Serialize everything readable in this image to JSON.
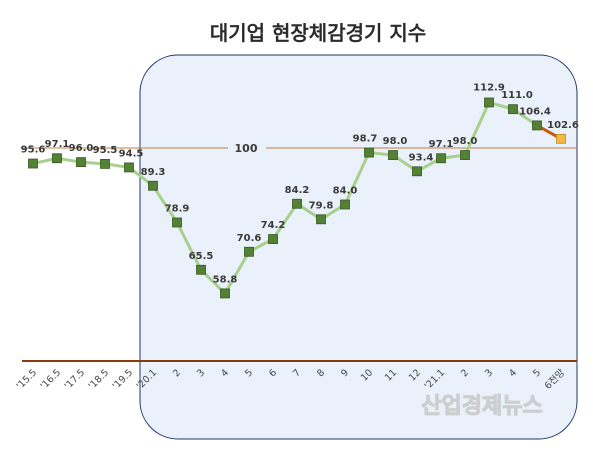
{
  "chart_data": {
    "type": "line",
    "title": "대기업 현장체감경기 지수",
    "reference_line": {
      "value": 100,
      "label": "100"
    },
    "categories": [
      "'15.5",
      "'16.5",
      "'17.5",
      "'18.5",
      "'19.5",
      "'20.1",
      "2",
      "3",
      "4",
      "5",
      "6",
      "7",
      "8",
      "9",
      "10",
      "11",
      "12",
      "'21.1",
      "2",
      "3",
      "4",
      "5",
      "6전망"
    ],
    "series": [
      {
        "values": [
          95.6,
          97.1,
          96.0,
          95.5,
          94.5,
          89.3,
          78.9,
          65.5,
          58.8,
          70.6,
          74.2,
          84.2,
          79.8,
          84.0,
          98.7,
          98.0,
          93.4,
          97.1,
          98.0,
          112.9,
          111.0,
          106.4,
          null
        ]
      },
      {
        "values": [
          null,
          null,
          null,
          null,
          null,
          null,
          null,
          null,
          null,
          null,
          null,
          null,
          null,
          null,
          null,
          null,
          null,
          null,
          null,
          null,
          null,
          106.4,
          102.6
        ]
      }
    ],
    "data_labels": [
      "95.6",
      "97.1",
      "96.0",
      "95.5",
      "94.5",
      "89.3",
      "78.9",
      "65.5",
      "58.8",
      "70.6",
      "74.2",
      "84.2",
      "79.8",
      "84.0",
      "98.7",
      "98.0",
      "93.4",
      "97.1",
      "98.0",
      "112.9",
      "111.0",
      "106.4",
      "102.6"
    ],
    "colors": {
      "line": "#a8d08d",
      "marker": "#548235",
      "marker_border": "#375623",
      "forecast_line": "#c55a11",
      "forecast_marker": "#f4b942",
      "reference": "#c07c45",
      "axis": "#843c0c",
      "highlight_fill": "#eaf1fa",
      "highlight_border": "#1f3864",
      "forecast_label": "#c55a11"
    }
  },
  "watermark": "산업경제뉴스"
}
